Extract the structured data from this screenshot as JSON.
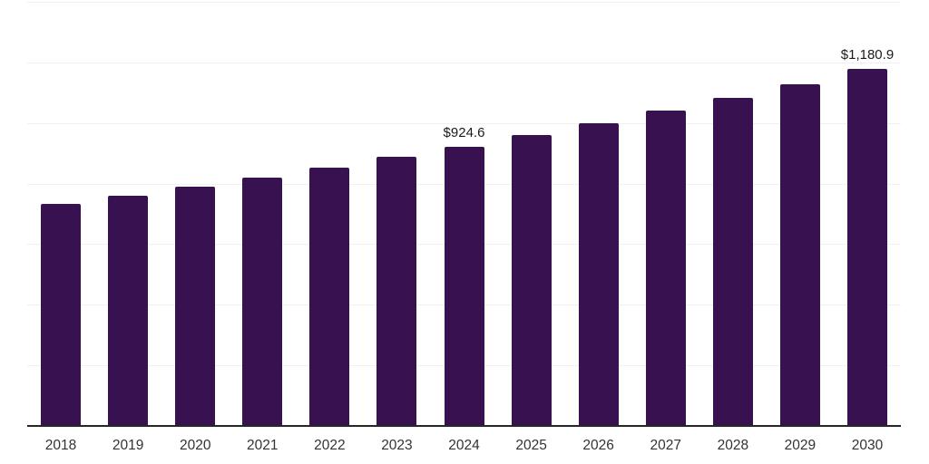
{
  "chart_data": {
    "type": "bar",
    "title": "",
    "xlabel": "",
    "ylabel": "",
    "categories": [
      "2018",
      "2019",
      "2020",
      "2021",
      "2022",
      "2023",
      "2024",
      "2025",
      "2026",
      "2027",
      "2028",
      "2029",
      "2030"
    ],
    "values": [
      737.2,
      764.0,
      792.4,
      823.1,
      855.4,
      890.9,
      924.6,
      962.5,
      1003.2,
      1044.0,
      1085.4,
      1132.0,
      1180.9
    ],
    "point_labels": [
      "",
      "",
      "",
      "",
      "",
      "",
      "$924.6",
      "",
      "",
      "",
      "",
      "",
      "$1,180.9"
    ],
    "ylim": [
      0,
      1400
    ],
    "gridline_step": 200,
    "grid": "on",
    "legend": "none",
    "y_axis_labels": "hidden",
    "colors": {
      "bar": "#381150",
      "grid": "#f0f0f0",
      "axis_line": "#262626",
      "tick_label": "#333333",
      "value_label": "#1a1a1a",
      "background": "#ffffff"
    }
  }
}
